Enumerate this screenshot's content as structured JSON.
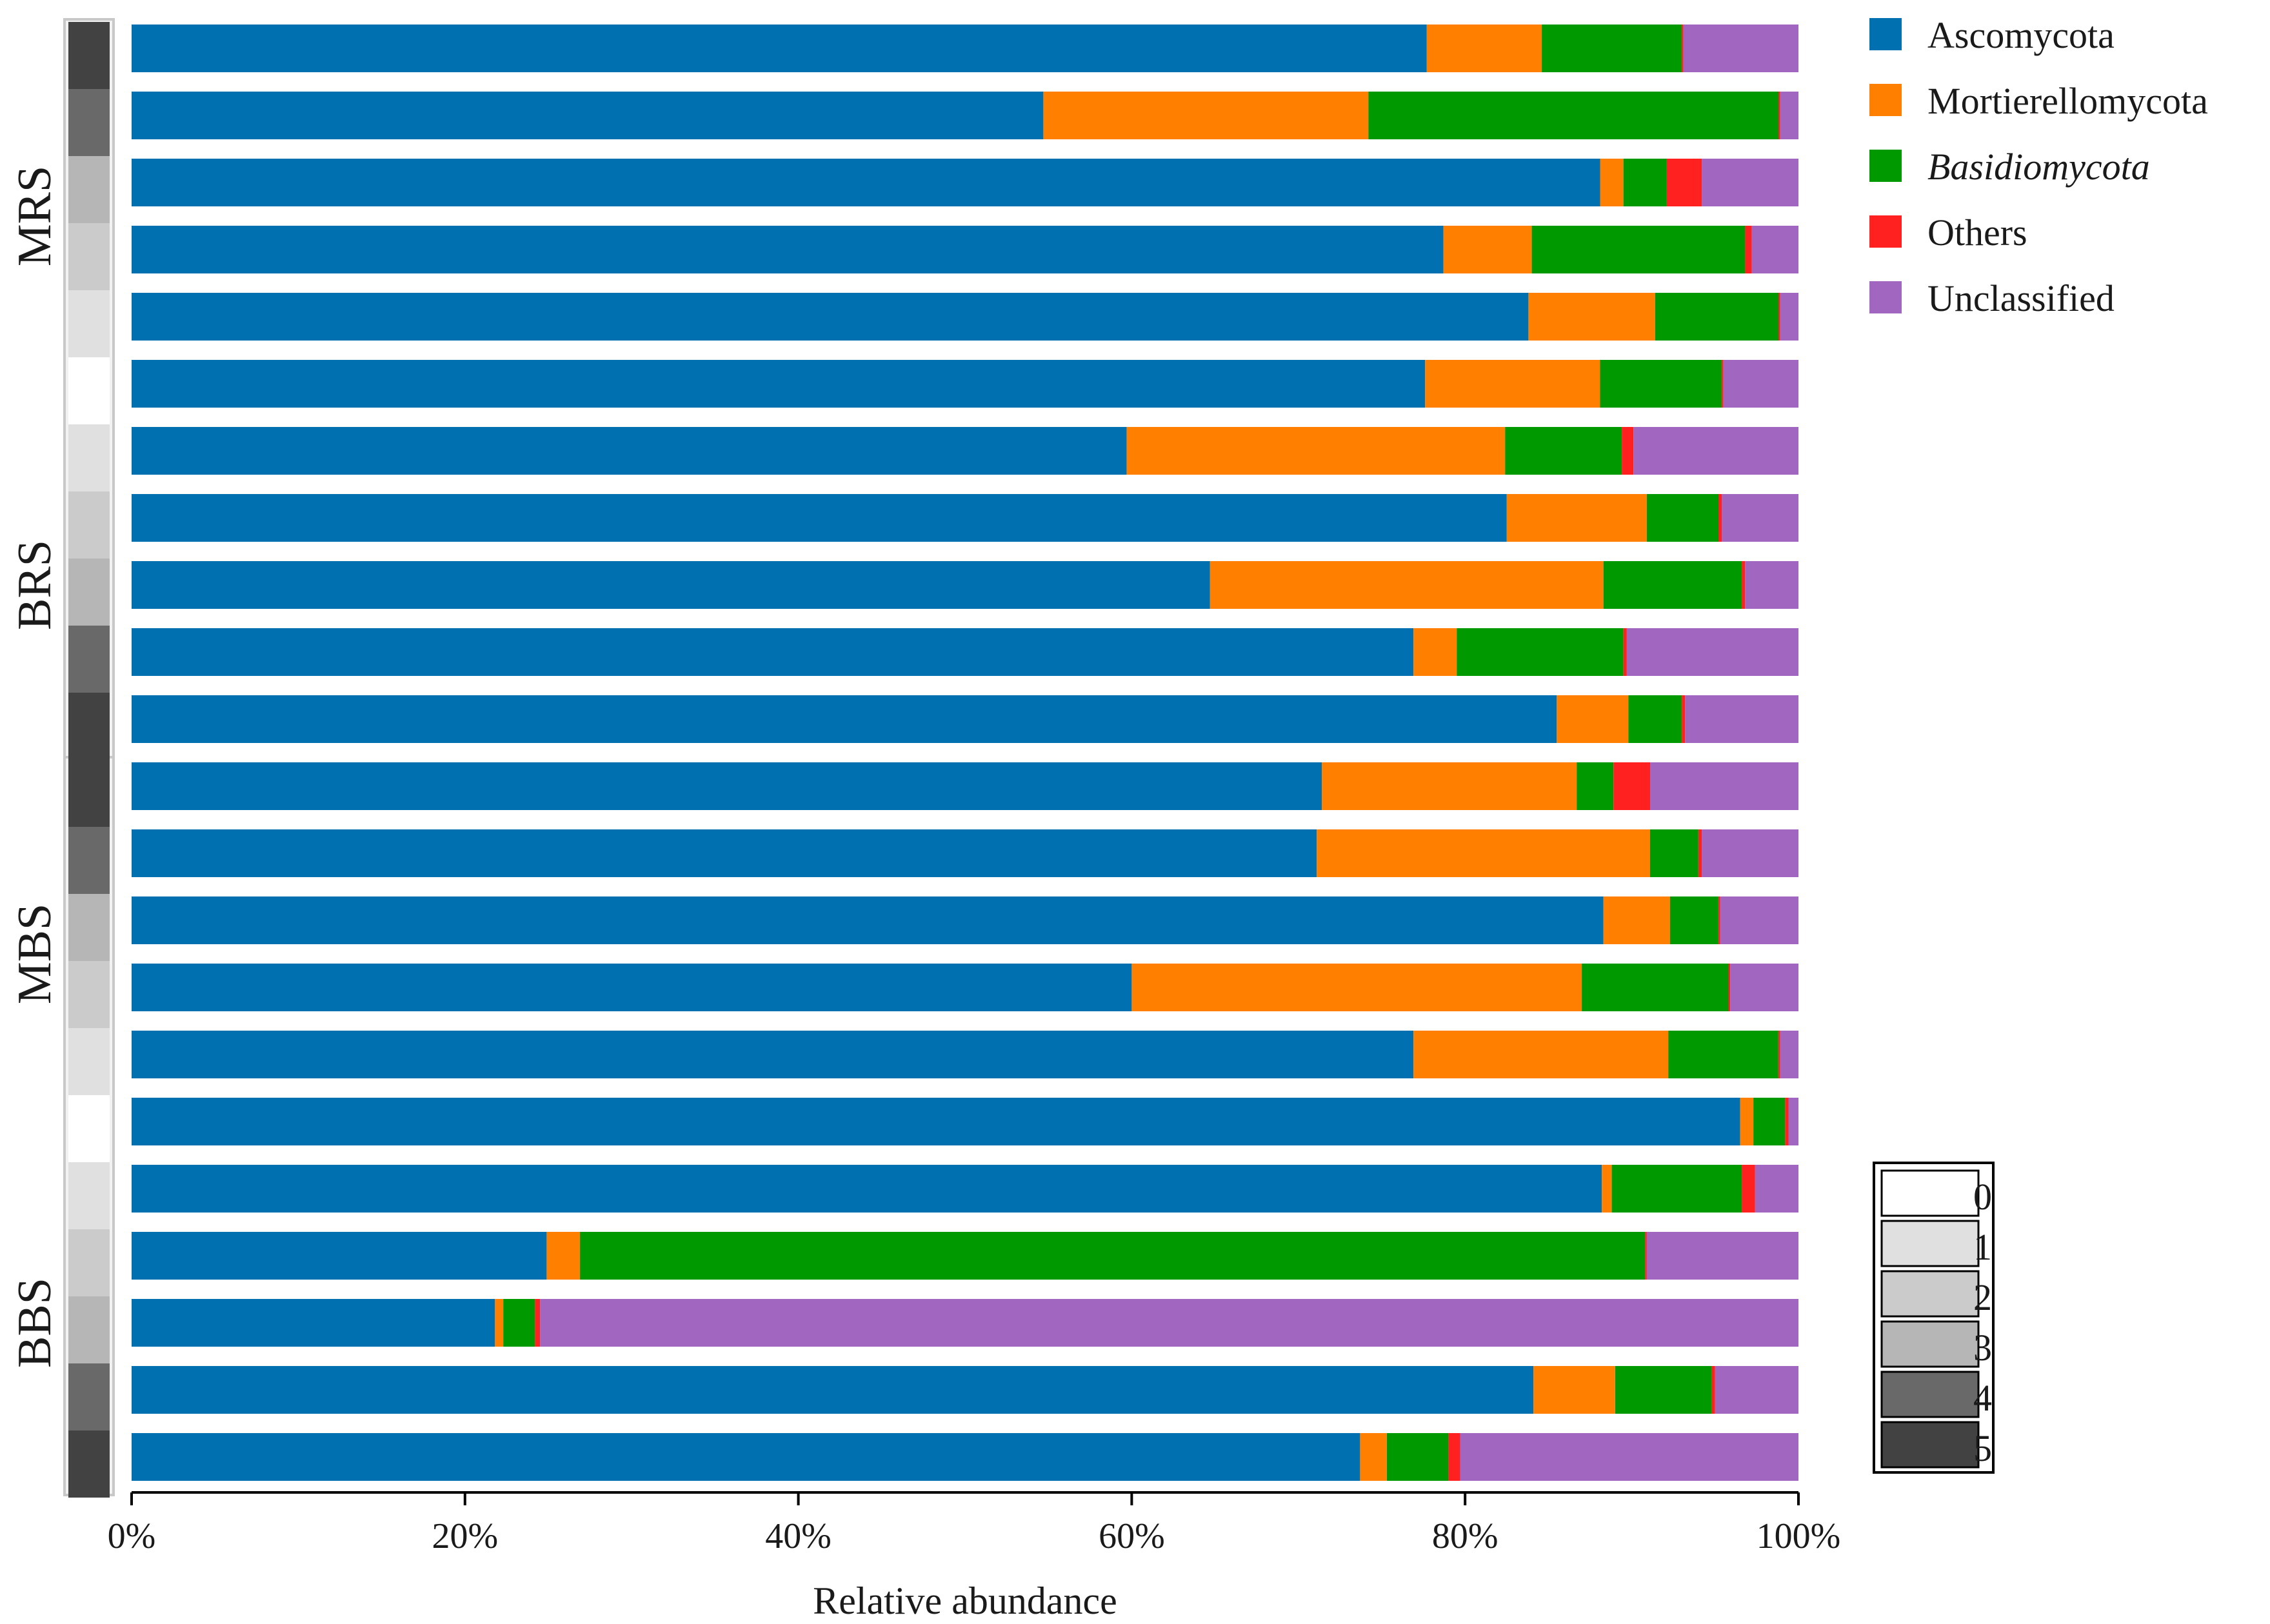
{
  "chart_data": {
    "type": "bar",
    "orientation": "horizontal",
    "stacked": true,
    "title": "",
    "xlabel": "Relative abundance",
    "ylabel": "",
    "xlim": [
      0,
      100
    ],
    "x_ticks": [
      "0%",
      "20%",
      "40%",
      "60%",
      "80%",
      "100%"
    ],
    "groups": [
      {
        "name": "MRS",
        "bars": [
          0,
          5
        ]
      },
      {
        "name": "BRS",
        "bars": [
          6,
          10
        ]
      },
      {
        "name": "MBS",
        "bars": [
          11,
          16
        ]
      },
      {
        "name": "BBS",
        "bars": [
          17,
          21
        ]
      }
    ],
    "series": [
      {
        "name": "Ascomycota",
        "color": "#0070b0",
        "italic": false,
        "values": [
          77.7,
          54.7,
          88.1,
          78.7,
          83.8,
          77.6,
          59.7,
          82.5,
          64.7,
          76.9,
          85.5,
          71.4,
          71.1,
          88.3,
          60.0,
          76.9,
          96.5,
          88.2,
          24.9,
          21.8,
          84.1,
          73.7
        ]
      },
      {
        "name": "Mortierellomycota",
        "color": "#ff8000",
        "italic": false,
        "values": [
          6.9,
          19.5,
          1.4,
          5.3,
          7.6,
          10.5,
          22.7,
          8.4,
          23.6,
          2.6,
          4.3,
          15.3,
          20.0,
          4.0,
          27.0,
          15.3,
          0.8,
          0.6,
          2.0,
          0.5,
          4.9,
          1.6
        ]
      },
      {
        "name": "Basidiomycota",
        "color": "#009a00",
        "italic": true,
        "values": [
          8.4,
          24.6,
          2.6,
          12.8,
          7.4,
          7.3,
          7.0,
          4.3,
          8.3,
          10.0,
          3.2,
          2.2,
          2.9,
          2.9,
          8.8,
          6.6,
          1.9,
          7.8,
          63.9,
          1.9,
          5.8,
          3.7
        ]
      },
      {
        "name": "Others",
        "color": "#ff2020",
        "italic": false,
        "values": [
          0.1,
          0.1,
          2.1,
          0.4,
          0.1,
          0.1,
          0.7,
          0.2,
          0.2,
          0.2,
          0.2,
          2.2,
          0.2,
          0.1,
          0.1,
          0.1,
          0.2,
          0.8,
          0.1,
          0.3,
          0.2,
          0.7
        ]
      },
      {
        "name": "Unclassified",
        "color": "#a066c0",
        "italic": false,
        "values": [
          6.9,
          1.1,
          5.8,
          2.8,
          1.1,
          4.5,
          9.9,
          4.6,
          3.2,
          10.3,
          6.8,
          8.9,
          5.8,
          4.7,
          4.1,
          1.1,
          0.6,
          2.6,
          9.1,
          75.5,
          5.0,
          20.3
        ]
      }
    ],
    "sample_levels": [
      5,
      4,
      3,
      2,
      1,
      0,
      1,
      2,
      3,
      4,
      5,
      5,
      4,
      3,
      2,
      1,
      0,
      1,
      2,
      3,
      4,
      5
    ],
    "level_scale": {
      "labels": [
        "0",
        "1",
        "2",
        "3",
        "4",
        "5"
      ],
      "colors": [
        "#ffffff",
        "#e0e0e0",
        "#cbcbcb",
        "#b6b6b6",
        "#696969",
        "#424242"
      ]
    },
    "legend_position": "top-right"
  }
}
